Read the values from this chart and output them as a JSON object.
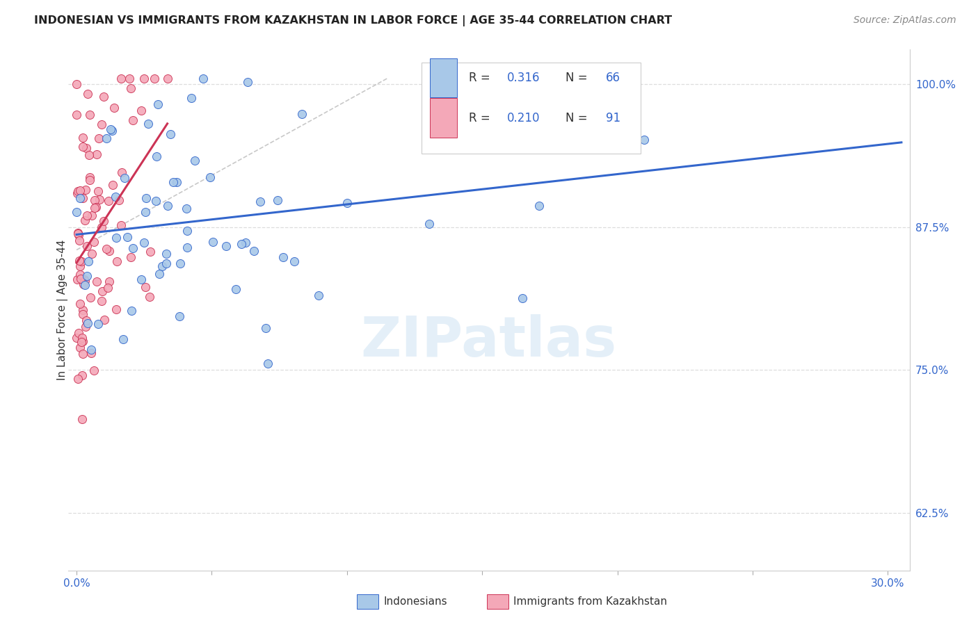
{
  "title": "INDONESIAN VS IMMIGRANTS FROM KAZAKHSTAN IN LABOR FORCE | AGE 35-44 CORRELATION CHART",
  "source": "Source: ZipAtlas.com",
  "ylabel": "In Labor Force | Age 35-44",
  "xlim": [
    -0.003,
    0.308
  ],
  "ylim": [
    0.575,
    1.03
  ],
  "yticks": [
    0.625,
    0.75,
    0.875,
    1.0
  ],
  "ytick_labels": [
    "62.5%",
    "75.0%",
    "87.5%",
    "100.0%"
  ],
  "xticks": [
    0.0,
    0.05,
    0.1,
    0.15,
    0.2,
    0.25,
    0.3
  ],
  "xtick_labels": [
    "0.0%",
    "",
    "",
    "",
    "",
    "",
    "30.0%"
  ],
  "blue_R": 0.316,
  "blue_N": 66,
  "pink_R": 0.21,
  "pink_N": 91,
  "blue_color": "#a8c8e8",
  "pink_color": "#f4a8b8",
  "trendline_blue_color": "#3366cc",
  "trendline_pink_color": "#cc3355",
  "ref_line_color": "#bbbbbb",
  "watermark": "ZIPatlas",
  "grid_color": "#dddddd",
  "title_color": "#222222",
  "label_color": "#333333",
  "axis_tick_color": "#3366cc",
  "source_color": "#888888",
  "legend_R_value_color": "#3366cc",
  "legend_N_value_color": "#3366cc"
}
